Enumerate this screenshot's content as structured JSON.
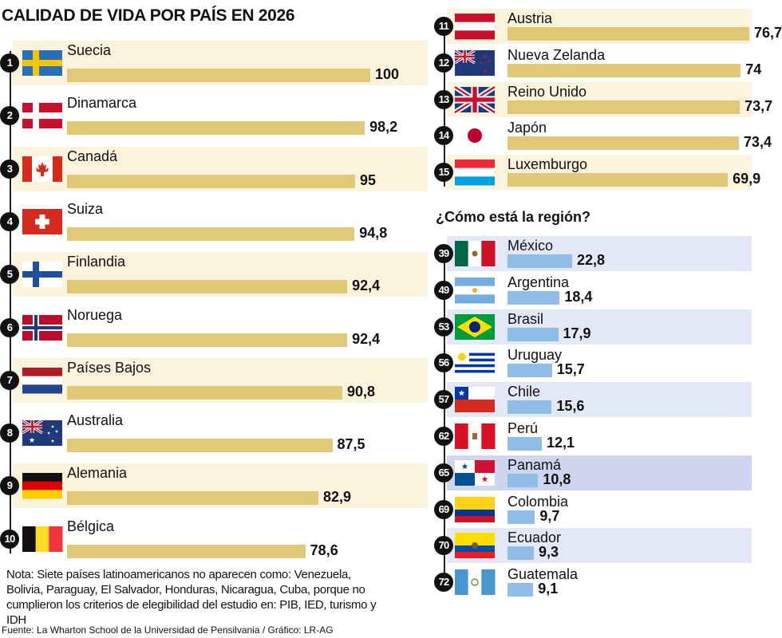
{
  "title": "CALIDAD DE VIDA POR PAÍS EN 2026",
  "region_title": "¿Cómo está la región?",
  "note": "Nota: Siete países latinoamericanos no aparecen como: Venezuela, Bolivia, Paraguay, El Salvador, Honduras, Nicaragua, Cuba, porque no cumplieron los criterios de elegibilidad del estudio en: PIB, IED, turismo y IDH",
  "source": "Fuente: La Wharton School de la Universidad de Pensilvania / Gráfico: LR-AG",
  "colors": {
    "top_bar": "#e0c878",
    "top_row_bg": "#fbf3dc",
    "region_bar": "#8fbde6",
    "region_row_bg": "#e3e8f6",
    "highlight_row_bg": "#cdd6ee"
  },
  "chart_data": [
    {
      "type": "bar",
      "orientation": "horizontal",
      "title": "CALIDAD DE VIDA POR PAÍS EN 2026",
      "ranks": [
        1,
        2,
        3,
        4,
        5,
        6,
        7,
        8,
        9,
        10,
        11,
        12,
        13,
        14,
        15
      ],
      "categories": [
        "Suecia",
        "Dinamarca",
        "Canadá",
        "Suiza",
        "Finlandia",
        "Noruega",
        "Países Bajos",
        "Australia",
        "Alemania",
        "Bélgica",
        "Austria",
        "Nueva Zelanda",
        "Reino Unido",
        "Japón",
        "Luxemburgo"
      ],
      "values": [
        100,
        98.2,
        95,
        94.8,
        92.4,
        92.4,
        90.8,
        87.5,
        82.9,
        78.6,
        76.7,
        74,
        73.7,
        73.4,
        69.9
      ],
      "value_labels": [
        "100",
        "98,2",
        "95",
        "94,8",
        "92,4",
        "92,4",
        "90,8",
        "87,5",
        "82,9",
        "78,6",
        "76,7",
        "74",
        "73,7",
        "73,4",
        "69,9"
      ],
      "flag_icons": [
        "sweden-flag",
        "denmark-flag",
        "canada-flag",
        "switzerland-flag",
        "finland-flag",
        "norway-flag",
        "netherlands-flag",
        "australia-flag",
        "germany-flag",
        "belgium-flag",
        "austria-flag",
        "new-zealand-flag",
        "uk-flag",
        "japan-flag",
        "luxembourg-flag"
      ]
    },
    {
      "type": "bar",
      "orientation": "horizontal",
      "title": "¿Cómo está la región?",
      "ranks": [
        39,
        49,
        53,
        56,
        57,
        62,
        65,
        69,
        70,
        72
      ],
      "categories": [
        "México",
        "Argentina",
        "Brasil",
        "Uruguay",
        "Chile",
        "Perú",
        "Panamá",
        "Colombia",
        "Ecuador",
        "Guatemala"
      ],
      "values": [
        22.8,
        18.4,
        17.9,
        15.7,
        15.6,
        12.1,
        10.8,
        9.7,
        9.3,
        9.1
      ],
      "value_labels": [
        "22,8",
        "18,4",
        "17,9",
        "15,7",
        "15,6",
        "12,1",
        "10,8",
        "9,7",
        "9,3",
        "9,1"
      ],
      "flag_icons": [
        "mexico-flag",
        "argentina-flag",
        "brazil-flag",
        "uruguay-flag",
        "chile-flag",
        "peru-flag",
        "panama-flag",
        "colombia-flag",
        "ecuador-flag",
        "guatemala-flag"
      ],
      "highlighted": "Panamá"
    }
  ]
}
